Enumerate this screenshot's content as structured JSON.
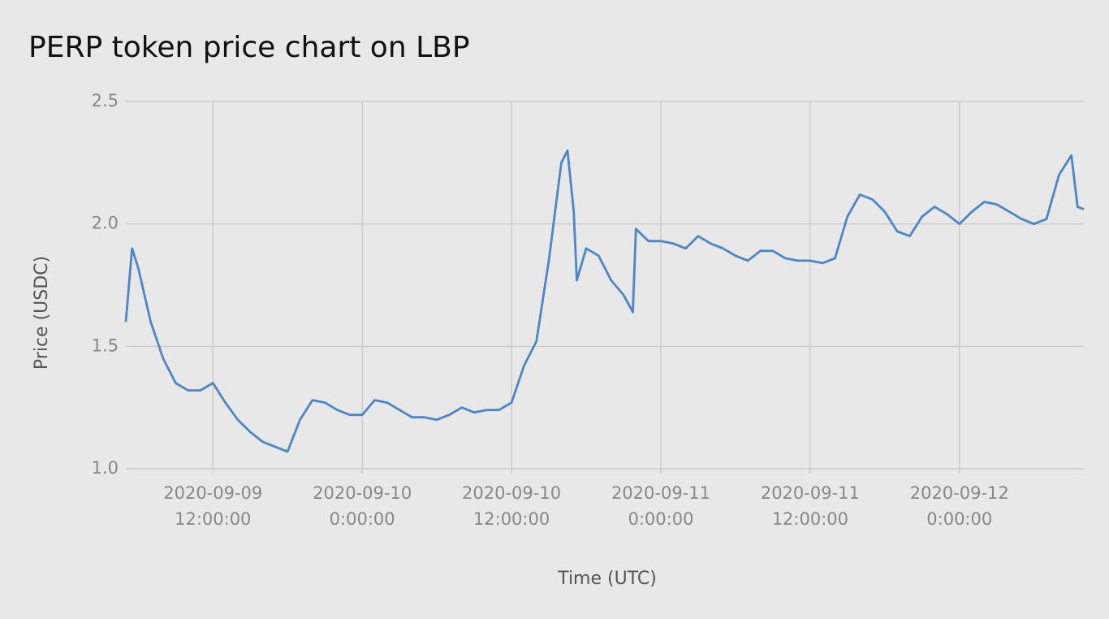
{
  "chart_data": {
    "type": "line",
    "title": "PERP token price chart on LBP",
    "x_label": "Time (UTC)",
    "y_label": "Price (USDC)",
    "x": [
      "2020-09-09 05:00:00",
      "2020-09-09 05:30:00",
      "2020-09-09 06:00:00",
      "2020-09-09 07:00:00",
      "2020-09-09 08:00:00",
      "2020-09-09 09:00:00",
      "2020-09-09 10:00:00",
      "2020-09-09 11:00:00",
      "2020-09-09 12:00:00",
      "2020-09-09 13:00:00",
      "2020-09-09 14:00:00",
      "2020-09-09 15:00:00",
      "2020-09-09 16:00:00",
      "2020-09-09 17:00:00",
      "2020-09-09 18:00:00",
      "2020-09-09 19:00:00",
      "2020-09-09 20:00:00",
      "2020-09-09 21:00:00",
      "2020-09-09 22:00:00",
      "2020-09-09 23:00:00",
      "2020-09-10 00:00:00",
      "2020-09-10 01:00:00",
      "2020-09-10 02:00:00",
      "2020-09-10 03:00:00",
      "2020-09-10 04:00:00",
      "2020-09-10 05:00:00",
      "2020-09-10 06:00:00",
      "2020-09-10 07:00:00",
      "2020-09-10 08:00:00",
      "2020-09-10 09:00:00",
      "2020-09-10 10:00:00",
      "2020-09-10 11:00:00",
      "2020-09-10 12:00:00",
      "2020-09-10 13:00:00",
      "2020-09-10 14:00:00",
      "2020-09-10 15:00:00",
      "2020-09-10 16:00:00",
      "2020-09-10 16:30:00",
      "2020-09-10 17:00:00",
      "2020-09-10 17:15:00",
      "2020-09-10 18:00:00",
      "2020-09-10 19:00:00",
      "2020-09-10 20:00:00",
      "2020-09-10 21:00:00",
      "2020-09-10 21:45:00",
      "2020-09-10 22:00:00",
      "2020-09-10 23:00:00",
      "2020-09-11 00:00:00",
      "2020-09-11 01:00:00",
      "2020-09-11 02:00:00",
      "2020-09-11 03:00:00",
      "2020-09-11 04:00:00",
      "2020-09-11 05:00:00",
      "2020-09-11 06:00:00",
      "2020-09-11 07:00:00",
      "2020-09-11 08:00:00",
      "2020-09-11 09:00:00",
      "2020-09-11 10:00:00",
      "2020-09-11 11:00:00",
      "2020-09-11 12:00:00",
      "2020-09-11 13:00:00",
      "2020-09-11 14:00:00",
      "2020-09-11 15:00:00",
      "2020-09-11 16:00:00",
      "2020-09-11 17:00:00",
      "2020-09-11 18:00:00",
      "2020-09-11 19:00:00",
      "2020-09-11 20:00:00",
      "2020-09-11 21:00:00",
      "2020-09-11 22:00:00",
      "2020-09-11 23:00:00",
      "2020-09-12 00:00:00",
      "2020-09-12 01:00:00",
      "2020-09-12 02:00:00",
      "2020-09-12 03:00:00",
      "2020-09-12 04:00:00",
      "2020-09-12 05:00:00",
      "2020-09-12 06:00:00",
      "2020-09-12 07:00:00",
      "2020-09-12 08:00:00",
      "2020-09-12 09:00:00",
      "2020-09-12 09:30:00",
      "2020-09-12 10:00:00"
    ],
    "series": [
      {
        "name": "PERP",
        "color": "#4a86c8",
        "values": [
          1.6,
          1.9,
          1.82,
          1.6,
          1.45,
          1.35,
          1.32,
          1.32,
          1.35,
          1.27,
          1.2,
          1.15,
          1.11,
          1.09,
          1.07,
          1.2,
          1.28,
          1.27,
          1.24,
          1.22,
          1.22,
          1.28,
          1.27,
          1.24,
          1.21,
          1.21,
          1.2,
          1.22,
          1.25,
          1.23,
          1.24,
          1.24,
          1.27,
          1.42,
          1.52,
          1.85,
          2.25,
          2.3,
          2.05,
          1.77,
          1.9,
          1.87,
          1.77,
          1.71,
          1.64,
          1.98,
          1.93,
          1.93,
          1.92,
          1.9,
          1.95,
          1.92,
          1.9,
          1.87,
          1.85,
          1.89,
          1.89,
          1.86,
          1.85,
          1.85,
          1.84,
          1.86,
          2.03,
          2.12,
          2.1,
          2.05,
          1.97,
          1.95,
          2.03,
          2.07,
          2.04,
          2.0,
          2.05,
          2.09,
          2.08,
          2.05,
          2.02,
          2.0,
          2.02,
          2.2,
          2.28,
          2.07,
          2.06
        ]
      }
    ],
    "xlim": [
      "2020-09-09 05:00:00",
      "2020-09-12 10:00:00"
    ],
    "xticks": [
      {
        "value": "2020-09-09 12:00:00",
        "label": [
          "2020-09-09",
          "12:00:00"
        ]
      },
      {
        "value": "2020-09-10 00:00:00",
        "label": [
          "2020-09-10",
          "0:00:00"
        ]
      },
      {
        "value": "2020-09-10 12:00:00",
        "label": [
          "2020-09-10",
          "12:00:00"
        ]
      },
      {
        "value": "2020-09-11 00:00:00",
        "label": [
          "2020-09-11",
          "0:00:00"
        ]
      },
      {
        "value": "2020-09-11 12:00:00",
        "label": [
          "2020-09-11",
          "12:00:00"
        ]
      },
      {
        "value": "2020-09-12 00:00:00",
        "label": [
          "2020-09-12",
          "0:00:00"
        ]
      }
    ],
    "ylim": [
      1.0,
      2.5
    ],
    "yticks": [
      {
        "value": 1.0,
        "label": "1.0"
      },
      {
        "value": 1.5,
        "label": "1.5"
      },
      {
        "value": 2.0,
        "label": "2.0"
      },
      {
        "value": 2.5,
        "label": "2.5"
      }
    ],
    "grid": true
  }
}
